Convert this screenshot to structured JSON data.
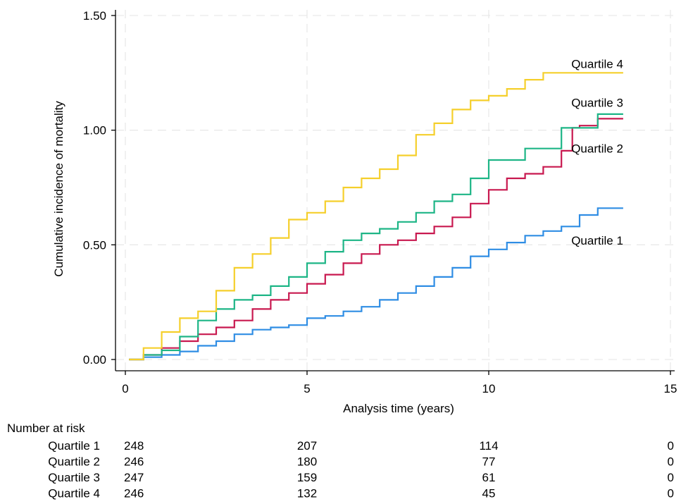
{
  "chart_data": {
    "type": "line",
    "title": "",
    "xlabel": "Analysis time (years)",
    "ylabel": "Cumulative incidence of mortality",
    "xlim": [
      0,
      15
    ],
    "ylim": [
      0,
      1.5
    ],
    "x_ticks": [
      0,
      5,
      10,
      15
    ],
    "x_tick_labels": [
      "0",
      "5",
      "10",
      "15"
    ],
    "y_ticks": [
      0,
      0.5,
      1.0,
      1.5
    ],
    "y_tick_labels": [
      "0.00",
      "0.50",
      "1.00",
      "1.50"
    ],
    "grid": "dashed horizontal and vertical at ticks",
    "legend": "none (series labelled at right end of curves)",
    "step": true,
    "series": [
      {
        "name": "Quartile 1",
        "color": "#2f8de4",
        "label_point": [
          13.7,
          0.52
        ],
        "points": [
          [
            0.1,
            0
          ],
          [
            0.5,
            0.01
          ],
          [
            1,
            0.02
          ],
          [
            1.5,
            0.035
          ],
          [
            2,
            0.06
          ],
          [
            2.5,
            0.08
          ],
          [
            3,
            0.11
          ],
          [
            3.5,
            0.13
          ],
          [
            4,
            0.14
          ],
          [
            4.5,
            0.15
          ],
          [
            5,
            0.18
          ],
          [
            5.5,
            0.19
          ],
          [
            6,
            0.21
          ],
          [
            6.5,
            0.23
          ],
          [
            7,
            0.26
          ],
          [
            7.5,
            0.29
          ],
          [
            8,
            0.32
          ],
          [
            8.5,
            0.36
          ],
          [
            9,
            0.4
          ],
          [
            9.5,
            0.45
          ],
          [
            10,
            0.48
          ],
          [
            10.5,
            0.51
          ],
          [
            11,
            0.54
          ],
          [
            11.5,
            0.56
          ],
          [
            12,
            0.58
          ],
          [
            12.5,
            0.63
          ],
          [
            13,
            0.66
          ],
          [
            13.7,
            0.66
          ]
        ]
      },
      {
        "name": "Quartile 2",
        "color": "#c8184f",
        "label_point": [
          13.7,
          0.92
        ],
        "points": [
          [
            0.1,
            0
          ],
          [
            0.5,
            0.02
          ],
          [
            1,
            0.05
          ],
          [
            1.5,
            0.08
          ],
          [
            2,
            0.11
          ],
          [
            2.5,
            0.14
          ],
          [
            3,
            0.17
          ],
          [
            3.5,
            0.22
          ],
          [
            4,
            0.26
          ],
          [
            4.5,
            0.29
          ],
          [
            5,
            0.33
          ],
          [
            5.5,
            0.37
          ],
          [
            6,
            0.42
          ],
          [
            6.5,
            0.46
          ],
          [
            7,
            0.5
          ],
          [
            7.5,
            0.52
          ],
          [
            8,
            0.55
          ],
          [
            8.5,
            0.58
          ],
          [
            9,
            0.62
          ],
          [
            9.5,
            0.68
          ],
          [
            10,
            0.74
          ],
          [
            10.5,
            0.79
          ],
          [
            11,
            0.81
          ],
          [
            11.5,
            0.84
          ],
          [
            12,
            0.91
          ],
          [
            12.3,
            1.01
          ],
          [
            12.5,
            1.02
          ],
          [
            13,
            1.05
          ],
          [
            13.7,
            1.05
          ]
        ]
      },
      {
        "name": "Quartile 3",
        "color": "#1db586",
        "label_point": [
          13.7,
          1.12
        ],
        "points": [
          [
            0.1,
            0
          ],
          [
            0.5,
            0.02
          ],
          [
            1,
            0.04
          ],
          [
            1.5,
            0.1
          ],
          [
            2,
            0.17
          ],
          [
            2.5,
            0.22
          ],
          [
            3,
            0.26
          ],
          [
            3.5,
            0.28
          ],
          [
            4,
            0.32
          ],
          [
            4.5,
            0.36
          ],
          [
            5,
            0.42
          ],
          [
            5.5,
            0.47
          ],
          [
            6,
            0.52
          ],
          [
            6.5,
            0.55
          ],
          [
            7,
            0.57
          ],
          [
            7.5,
            0.6
          ],
          [
            8,
            0.64
          ],
          [
            8.5,
            0.69
          ],
          [
            9,
            0.72
          ],
          [
            9.5,
            0.79
          ],
          [
            10,
            0.87
          ],
          [
            10.5,
            0.87
          ],
          [
            11,
            0.92
          ],
          [
            11.5,
            0.92
          ],
          [
            12,
            1.01
          ],
          [
            12.5,
            1.01
          ],
          [
            13,
            1.07
          ],
          [
            13.7,
            1.07
          ]
        ]
      },
      {
        "name": "Quartile 4",
        "color": "#f5cf2b",
        "label_point": [
          13.7,
          1.29
        ],
        "points": [
          [
            0.1,
            0
          ],
          [
            0.5,
            0.05
          ],
          [
            1,
            0.12
          ],
          [
            1.5,
            0.18
          ],
          [
            2,
            0.21
          ],
          [
            2.5,
            0.3
          ],
          [
            3,
            0.4
          ],
          [
            3.5,
            0.46
          ],
          [
            4,
            0.53
          ],
          [
            4.5,
            0.61
          ],
          [
            5,
            0.64
          ],
          [
            5.5,
            0.69
          ],
          [
            6,
            0.75
          ],
          [
            6.5,
            0.79
          ],
          [
            7,
            0.83
          ],
          [
            7.5,
            0.89
          ],
          [
            8,
            0.98
          ],
          [
            8.5,
            1.03
          ],
          [
            9,
            1.09
          ],
          [
            9.5,
            1.13
          ],
          [
            10,
            1.15
          ],
          [
            10.5,
            1.18
          ],
          [
            11,
            1.22
          ],
          [
            11.5,
            1.25
          ],
          [
            13.7,
            1.25
          ]
        ]
      }
    ],
    "risk_table": {
      "title": "Number at risk",
      "times": [
        0,
        5,
        10,
        15
      ],
      "rows": [
        {
          "label": "Quartile 1",
          "values": [
            "248",
            "207",
            "114",
            "0"
          ]
        },
        {
          "label": "Quartile 2",
          "values": [
            "246",
            "180",
            "77",
            "0"
          ]
        },
        {
          "label": "Quartile 3",
          "values": [
            "247",
            "159",
            "61",
            "0"
          ]
        },
        {
          "label": "Quartile 4",
          "values": [
            "246",
            "132",
            "45",
            "0"
          ]
        }
      ]
    }
  }
}
